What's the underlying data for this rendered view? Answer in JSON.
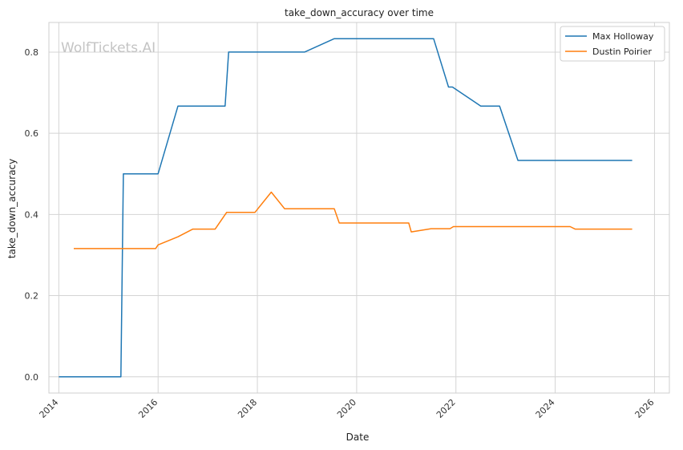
{
  "chart_data": {
    "type": "line",
    "title": "take_down_accuracy over time",
    "xlabel": "Date",
    "ylabel": "take_down_accuracy",
    "watermark": "WolfTickets.AI",
    "xlim": [
      2013.8,
      2026.3
    ],
    "ylim": [
      -0.04,
      0.873
    ],
    "x_ticks": [
      2014,
      2016,
      2018,
      2020,
      2022,
      2024,
      2026
    ],
    "x_tick_labels": [
      "2014",
      "2016",
      "2018",
      "2020",
      "2022",
      "2024",
      "2026"
    ],
    "y_ticks": [
      0.0,
      0.2,
      0.4,
      0.6,
      0.8
    ],
    "y_tick_labels": [
      "0.0",
      "0.2",
      "0.4",
      "0.6",
      "0.8"
    ],
    "grid": true,
    "legend_position": "top-right",
    "series": [
      {
        "name": "Max Holloway",
        "color": "#1f77b4",
        "points": [
          [
            2014.0,
            0.0
          ],
          [
            2015.25,
            0.0
          ],
          [
            2015.3,
            0.5
          ],
          [
            2016.0,
            0.5
          ],
          [
            2016.4,
            0.667
          ],
          [
            2017.35,
            0.667
          ],
          [
            2017.42,
            0.8
          ],
          [
            2018.95,
            0.8
          ],
          [
            2019.55,
            0.833
          ],
          [
            2021.55,
            0.833
          ],
          [
            2021.85,
            0.714
          ],
          [
            2021.93,
            0.714
          ],
          [
            2022.5,
            0.667
          ],
          [
            2022.88,
            0.667
          ],
          [
            2023.25,
            0.533
          ],
          [
            2025.55,
            0.533
          ]
        ]
      },
      {
        "name": "Dustin Poirier",
        "color": "#ff7f0e",
        "points": [
          [
            2014.3,
            0.316
          ],
          [
            2015.95,
            0.316
          ],
          [
            2016.0,
            0.325
          ],
          [
            2016.4,
            0.345
          ],
          [
            2016.7,
            0.364
          ],
          [
            2017.15,
            0.364
          ],
          [
            2017.38,
            0.405
          ],
          [
            2017.95,
            0.405
          ],
          [
            2018.28,
            0.455
          ],
          [
            2018.55,
            0.414
          ],
          [
            2019.55,
            0.414
          ],
          [
            2019.65,
            0.379
          ],
          [
            2021.05,
            0.379
          ],
          [
            2021.1,
            0.357
          ],
          [
            2021.5,
            0.365
          ],
          [
            2021.88,
            0.365
          ],
          [
            2021.95,
            0.37
          ],
          [
            2024.3,
            0.37
          ],
          [
            2024.4,
            0.364
          ],
          [
            2025.55,
            0.364
          ]
        ]
      }
    ]
  }
}
